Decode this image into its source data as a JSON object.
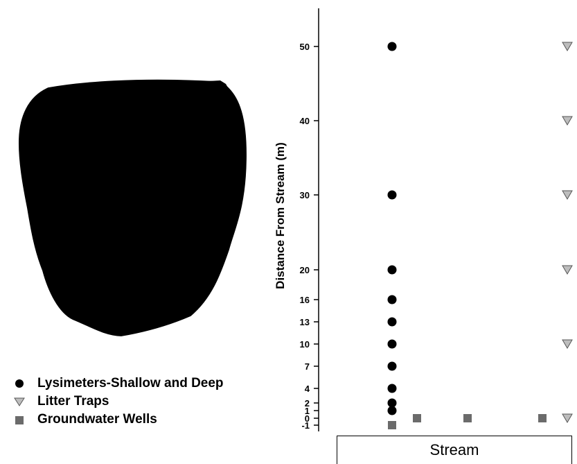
{
  "diagram": {
    "ylabel": "Distance From Stream (m)",
    "stream_label": "Stream",
    "tick_labels": [
      "50",
      "40",
      "30",
      "20",
      "16",
      "13",
      "10",
      "7",
      "4",
      "2",
      "1",
      "0",
      "-1"
    ],
    "legend": [
      {
        "label": "Lysimeters-Shallow and Deep",
        "icon": "filled-circle-icon"
      },
      {
        "label": "Litter Traps",
        "icon": "down-triangle-icon"
      },
      {
        "label": "Groundwater Wells",
        "icon": "square-icon"
      }
    ],
    "colors": {
      "watershed_fill": "#c8c8c8",
      "lysimeter": "#000000",
      "litter_trap": "#bdbdbd",
      "well": "#6b6b6b"
    }
  },
  "chart_data": {
    "type": "scatter",
    "ylabel": "Distance From Stream (m)",
    "xlabel": "Stream",
    "series": [
      {
        "name": "Lysimeters-Shallow and Deep",
        "y": [
          50,
          30,
          20,
          16,
          13,
          10,
          7,
          4,
          2,
          1
        ]
      },
      {
        "name": "Litter Traps",
        "y": [
          50,
          40,
          30,
          20,
          10,
          0
        ]
      },
      {
        "name": "Groundwater Wells",
        "y": [
          -1,
          0,
          0,
          0
        ]
      }
    ]
  }
}
